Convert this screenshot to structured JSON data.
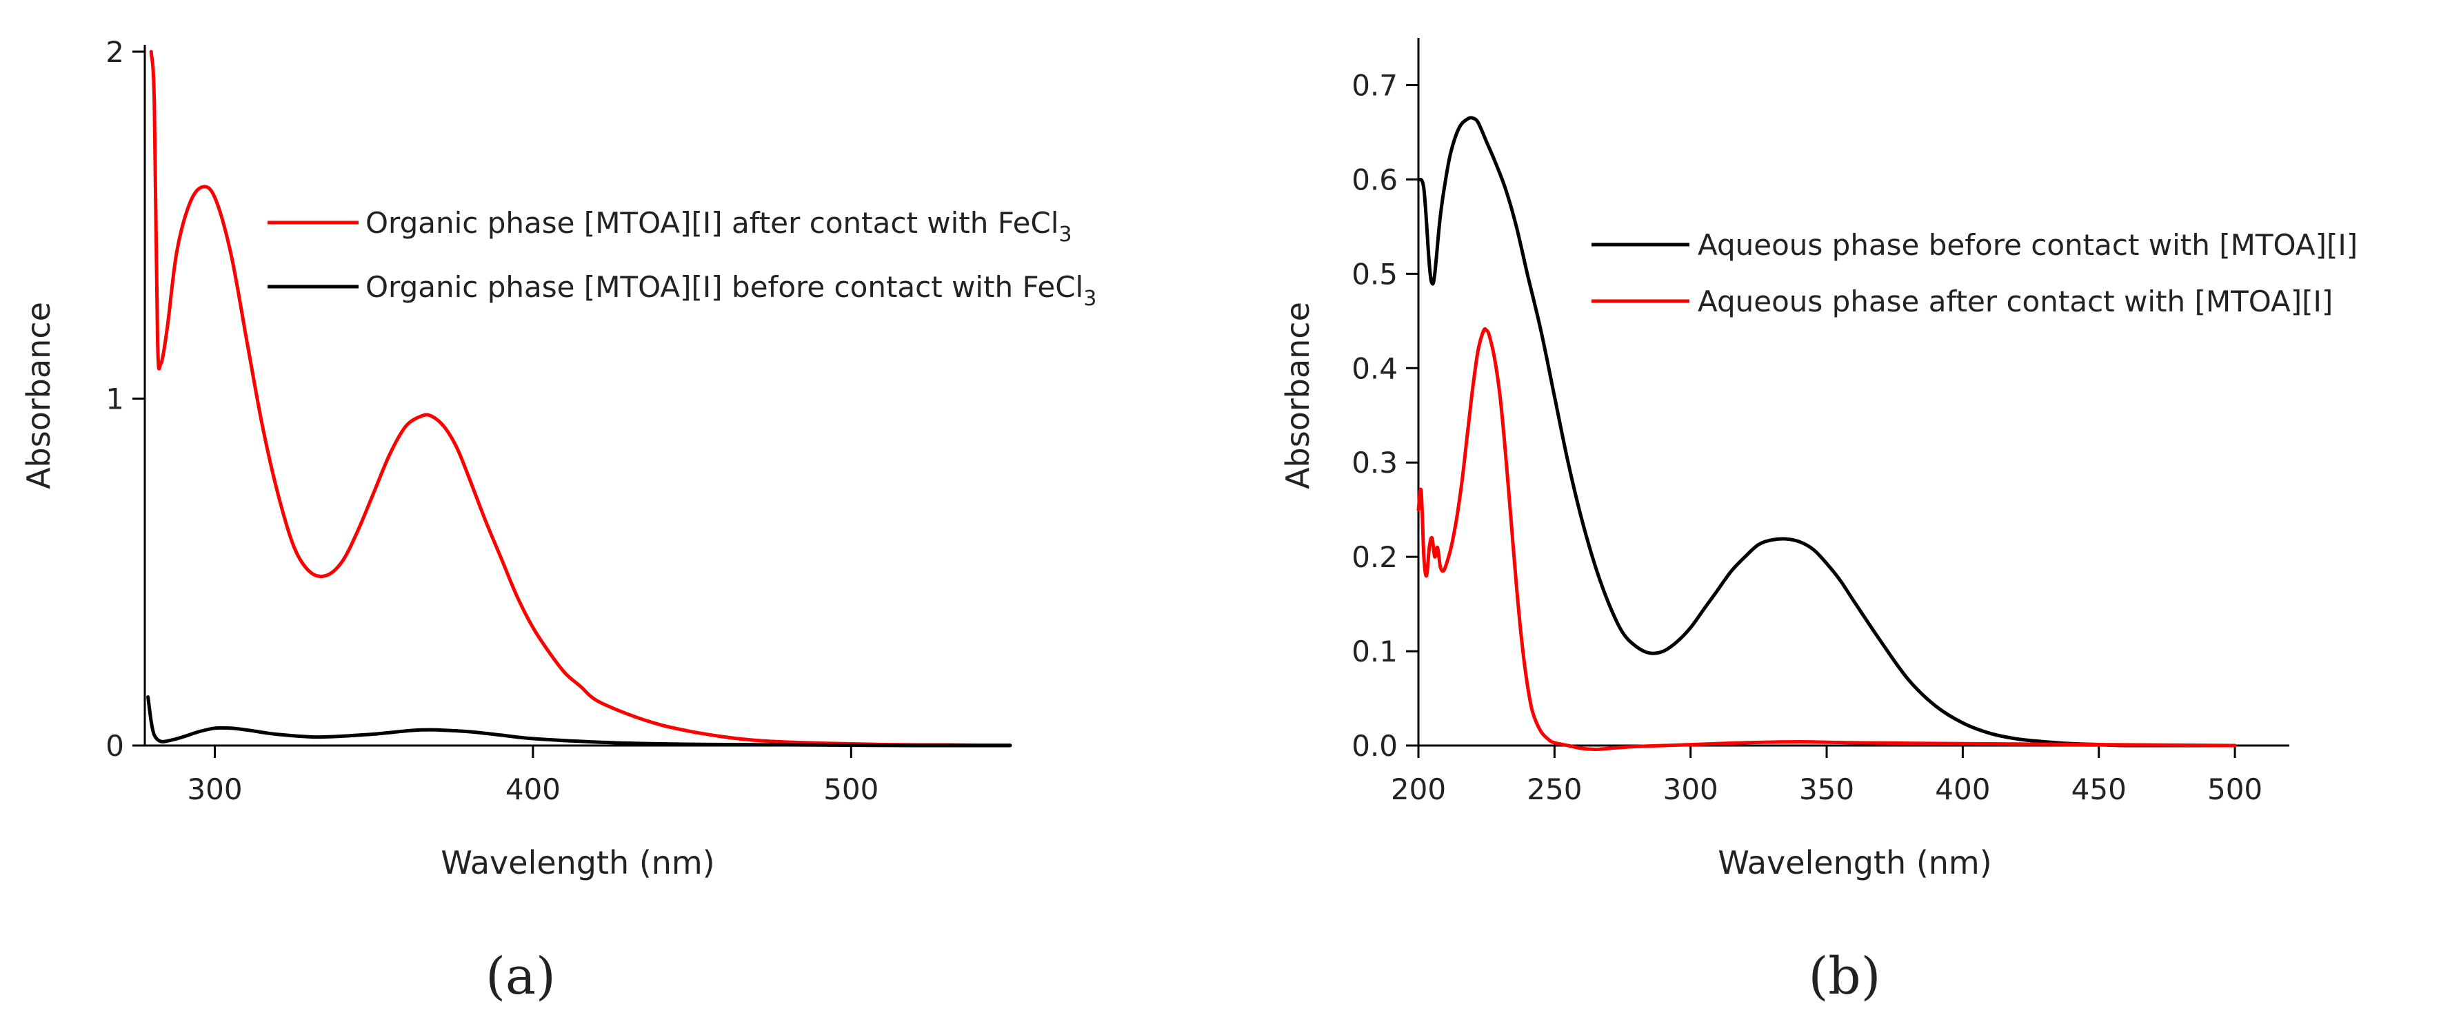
{
  "chart_data": [
    {
      "panel": "(a)",
      "type": "line",
      "xlabel": "Wavelength (nm)",
      "ylabel": "Absorbance",
      "xlim": [
        278,
        550
      ],
      "ylim": [
        0,
        2
      ],
      "xticks": [
        300,
        400,
        500
      ],
      "yticks": [
        0,
        1,
        2
      ],
      "legend_position": "top-right",
      "series": [
        {
          "name": "Organic phase [MTOA][I] after contact with FeCl",
          "name_subscript": "3",
          "color": "#ff0000",
          "x": [
            280,
            281,
            282,
            283,
            285,
            288,
            292,
            296,
            300,
            305,
            310,
            315,
            320,
            325,
            330,
            335,
            340,
            345,
            350,
            355,
            360,
            365,
            368,
            372,
            376,
            380,
            385,
            390,
            395,
            400,
            405,
            410,
            415,
            420,
            430,
            440,
            450,
            460,
            470,
            480,
            490,
            500,
            510,
            520,
            530,
            540,
            550
          ],
          "y": [
            2.0,
            1.85,
            1.17,
            1.1,
            1.2,
            1.42,
            1.56,
            1.61,
            1.58,
            1.42,
            1.17,
            0.92,
            0.72,
            0.57,
            0.5,
            0.49,
            0.53,
            0.62,
            0.73,
            0.84,
            0.92,
            0.95,
            0.95,
            0.92,
            0.86,
            0.77,
            0.65,
            0.54,
            0.43,
            0.34,
            0.27,
            0.21,
            0.17,
            0.13,
            0.09,
            0.06,
            0.04,
            0.025,
            0.015,
            0.01,
            0.007,
            0.005,
            0.003,
            0.002,
            0.002,
            0.001,
            0.001
          ]
        },
        {
          "name": "Organic phase [MTOA][I] before contact with FeCl",
          "name_subscript": "3",
          "color": "#000000",
          "x": [
            279,
            280,
            281,
            283,
            286,
            290,
            295,
            300,
            305,
            310,
            315,
            320,
            330,
            335,
            340,
            350,
            360,
            365,
            370,
            380,
            390,
            400,
            420,
            440,
            460,
            480,
            500,
            520,
            550
          ],
          "y": [
            0.14,
            0.07,
            0.03,
            0.012,
            0.015,
            0.025,
            0.04,
            0.05,
            0.05,
            0.045,
            0.038,
            0.032,
            0.025,
            0.025,
            0.027,
            0.033,
            0.042,
            0.045,
            0.045,
            0.04,
            0.03,
            0.02,
            0.01,
            0.005,
            0.003,
            0.002,
            0.001,
            0.0,
            0.0
          ]
        }
      ]
    },
    {
      "panel": "(b)",
      "type": "line",
      "xlabel": "Wavelength (nm)",
      "ylabel": "Absorbance",
      "xlim": [
        200,
        520
      ],
      "ylim": [
        0,
        0.75
      ],
      "xticks": [
        200,
        250,
        300,
        350,
        400,
        450,
        500
      ],
      "yticks": [
        "0.0",
        "0.1",
        "0.2",
        "0.3",
        "0.4",
        "0.5",
        "0.6",
        "0.7"
      ],
      "legend_position": "top-right",
      "series": [
        {
          "name": "Aqueous phase before contact with [MTOA][I]",
          "color": "#000000",
          "x": [
            200,
            202,
            204,
            205,
            206,
            208,
            210,
            212,
            215,
            218,
            220,
            222,
            225,
            228,
            232,
            236,
            240,
            245,
            250,
            255,
            260,
            265,
            270,
            275,
            280,
            285,
            290,
            295,
            300,
            305,
            310,
            315,
            320,
            325,
            330,
            335,
            340,
            345,
            350,
            355,
            360,
            370,
            380,
            390,
            400,
            410,
            420,
            430,
            440,
            450,
            460,
            480,
            500
          ],
          "y": [
            0.6,
            0.59,
            0.51,
            0.49,
            0.5,
            0.56,
            0.6,
            0.63,
            0.655,
            0.664,
            0.665,
            0.66,
            0.64,
            0.62,
            0.59,
            0.55,
            0.5,
            0.44,
            0.37,
            0.3,
            0.24,
            0.19,
            0.15,
            0.12,
            0.105,
            0.098,
            0.1,
            0.11,
            0.125,
            0.145,
            0.165,
            0.185,
            0.2,
            0.213,
            0.218,
            0.219,
            0.216,
            0.208,
            0.193,
            0.175,
            0.153,
            0.11,
            0.07,
            0.042,
            0.024,
            0.013,
            0.007,
            0.004,
            0.002,
            0.001,
            0.0,
            0.0,
            0.0
          ]
        },
        {
          "name": "Aqueous phase after contact with [MTOA][I]",
          "color": "#ff0000",
          "x": [
            200,
            201,
            202,
            203,
            204,
            205,
            206,
            207,
            208,
            209,
            210,
            212,
            214,
            216,
            218,
            220,
            222,
            224,
            225,
            226,
            228,
            230,
            232,
            234,
            236,
            238,
            240,
            242,
            245,
            248,
            250,
            255,
            260,
            265,
            270,
            280,
            290,
            300,
            320,
            340,
            360,
            400,
            450,
            500
          ],
          "y": [
            0.25,
            0.27,
            0.2,
            0.18,
            0.21,
            0.22,
            0.2,
            0.21,
            0.19,
            0.185,
            0.19,
            0.21,
            0.24,
            0.28,
            0.33,
            0.38,
            0.42,
            0.44,
            0.44,
            0.435,
            0.41,
            0.37,
            0.31,
            0.24,
            0.17,
            0.11,
            0.065,
            0.035,
            0.015,
            0.006,
            0.003,
            0.0,
            -0.003,
            -0.004,
            -0.003,
            -0.001,
            0.0,
            0.001,
            0.003,
            0.004,
            0.003,
            0.002,
            0.001,
            0.0
          ]
        }
      ]
    }
  ]
}
